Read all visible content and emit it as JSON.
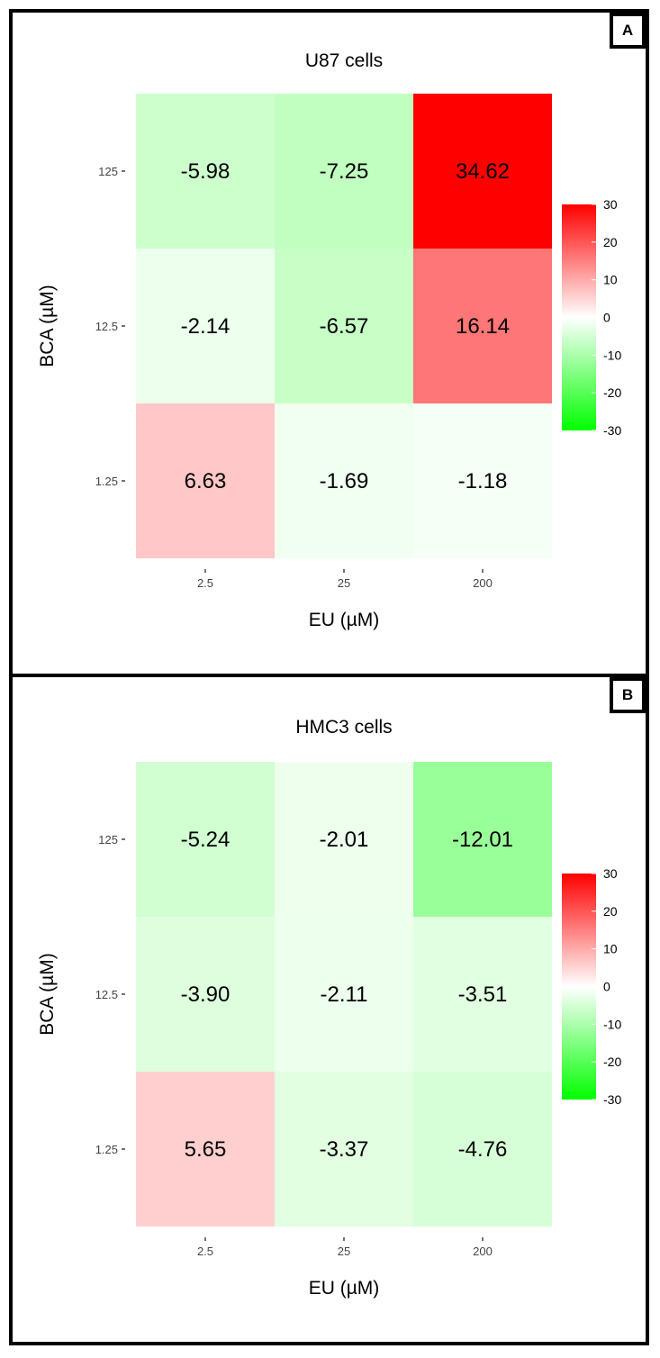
{
  "panels": [
    {
      "label": "A"
    },
    {
      "label": "B"
    }
  ],
  "chart_data": [
    {
      "type": "heatmap",
      "title": "U87 cells",
      "xlabel": "EU (µM)",
      "ylabel": "BCA (µM)",
      "x_categories": [
        "2.5",
        "25",
        "200"
      ],
      "y_categories": [
        "125",
        "12.5",
        "1.25"
      ],
      "values": [
        [
          -5.98,
          -7.25,
          34.62
        ],
        [
          -2.14,
          -6.57,
          16.14
        ],
        [
          6.63,
          -1.69,
          -1.18
        ]
      ],
      "value_labels": [
        [
          "-5.98",
          "-7.25",
          "34.62"
        ],
        [
          "-2.14",
          "-6.57",
          "16.14"
        ],
        [
          "6.63",
          "-1.69",
          "-1.18"
        ]
      ],
      "colorbar": {
        "ticks": [
          30,
          20,
          10,
          0,
          -10,
          -20,
          -30
        ],
        "limits": [
          -30,
          30
        ],
        "low_color": "#00ff00",
        "mid_color": "#ffffff",
        "high_color": "#ff0000"
      }
    },
    {
      "type": "heatmap",
      "title": "HMC3 cells",
      "xlabel": "EU (µM)",
      "ylabel": "BCA (µM)",
      "x_categories": [
        "2.5",
        "25",
        "200"
      ],
      "y_categories": [
        "125",
        "12.5",
        "1.25"
      ],
      "values": [
        [
          -5.24,
          -2.01,
          -12.01
        ],
        [
          -3.9,
          -2.11,
          -3.51
        ],
        [
          5.65,
          -3.37,
          -4.76
        ]
      ],
      "value_labels": [
        [
          "-5.24",
          "-2.01",
          "-12.01"
        ],
        [
          "-3.90",
          "-2.11",
          "-3.51"
        ],
        [
          "5.65",
          "-3.37",
          "-4.76"
        ]
      ],
      "colorbar": {
        "ticks": [
          30,
          20,
          10,
          0,
          -10,
          -20,
          -30
        ],
        "limits": [
          -30,
          30
        ],
        "low_color": "#00ff00",
        "mid_color": "#ffffff",
        "high_color": "#ff0000"
      }
    }
  ]
}
